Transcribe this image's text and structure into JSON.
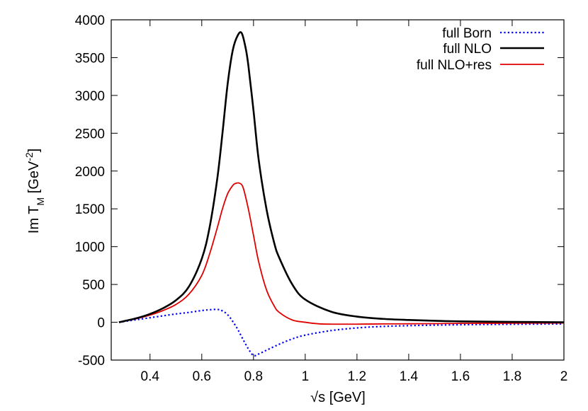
{
  "chart_data": {
    "type": "line",
    "title": "",
    "xlabel": {
      "prefix": "√s [GeV]"
    },
    "ylabel": {
      "main": "Im T",
      "sub": "M",
      "unit_open": " [GeV",
      "sup": "-2",
      "unit_close": "]"
    },
    "xlim": [
      0.25,
      2.0
    ],
    "ylim": [
      -500,
      4000
    ],
    "x_ticks": [
      0.4,
      0.6,
      0.8,
      1,
      1.2,
      1.4,
      1.6,
      1.8,
      2
    ],
    "x_tick_labels": [
      "0.4",
      "0.6",
      "0.8",
      "1",
      "1.2",
      "1.4",
      "1.6",
      "1.8",
      "2"
    ],
    "y_ticks": [
      -500,
      0,
      500,
      1000,
      1500,
      2000,
      2500,
      3000,
      3500,
      4000
    ],
    "y_tick_labels": [
      "-500",
      "0",
      "500",
      "1000",
      "1500",
      "2000",
      "2500",
      "3000",
      "3500",
      "4000"
    ],
    "grid": false,
    "legend_position": "top-right",
    "series": [
      {
        "name": "full Born",
        "color": "#0000ff",
        "style": "dotted",
        "x": [
          0.28,
          0.3,
          0.35,
          0.4,
          0.45,
          0.5,
          0.55,
          0.6,
          0.63,
          0.66,
          0.68,
          0.7,
          0.72,
          0.74,
          0.76,
          0.78,
          0.8,
          0.82,
          0.85,
          0.9,
          0.95,
          1.0,
          1.1,
          1.2,
          1.3,
          1.4,
          1.5,
          1.6,
          1.7,
          1.8,
          1.9,
          2.0
        ],
        "y": [
          0,
          10,
          35,
          60,
          85,
          110,
          130,
          155,
          165,
          170,
          150,
          100,
          10,
          -100,
          -230,
          -350,
          -440,
          -420,
          -370,
          -290,
          -220,
          -170,
          -110,
          -75,
          -55,
          -45,
          -38,
          -33,
          -29,
          -26,
          -24,
          -22
        ]
      },
      {
        "name": "full NLO",
        "color": "#000000",
        "style": "solid",
        "x": [
          0.28,
          0.3,
          0.35,
          0.4,
          0.45,
          0.5,
          0.55,
          0.6,
          0.63,
          0.66,
          0.68,
          0.7,
          0.72,
          0.74,
          0.755,
          0.77,
          0.78,
          0.8,
          0.82,
          0.85,
          0.88,
          0.9,
          0.95,
          1.0,
          1.1,
          1.2,
          1.3,
          1.4,
          1.5,
          1.6,
          1.8,
          2.0
        ],
        "y": [
          0,
          15,
          55,
          110,
          185,
          290,
          470,
          840,
          1250,
          1900,
          2500,
          3150,
          3600,
          3800,
          3820,
          3620,
          3400,
          2800,
          2150,
          1500,
          1050,
          850,
          500,
          300,
          140,
          75,
          45,
          30,
          20,
          12,
          5,
          0
        ]
      },
      {
        "name": "full NLO+res",
        "color": "#e00000",
        "style": "solid",
        "x": [
          0.28,
          0.3,
          0.35,
          0.4,
          0.45,
          0.5,
          0.55,
          0.6,
          0.63,
          0.66,
          0.68,
          0.7,
          0.72,
          0.73,
          0.745,
          0.76,
          0.78,
          0.8,
          0.82,
          0.85,
          0.88,
          0.9,
          0.95,
          1.0,
          1.05,
          1.1,
          1.2,
          1.3,
          1.4,
          1.5,
          1.6,
          1.8,
          2.0
        ],
        "y": [
          0,
          15,
          50,
          95,
          155,
          235,
          370,
          620,
          900,
          1250,
          1500,
          1700,
          1810,
          1835,
          1840,
          1780,
          1500,
          1150,
          800,
          430,
          215,
          130,
          30,
          0,
          -20,
          -25,
          -25,
          -22,
          -20,
          -18,
          -15,
          -12,
          -10
        ]
      }
    ]
  }
}
